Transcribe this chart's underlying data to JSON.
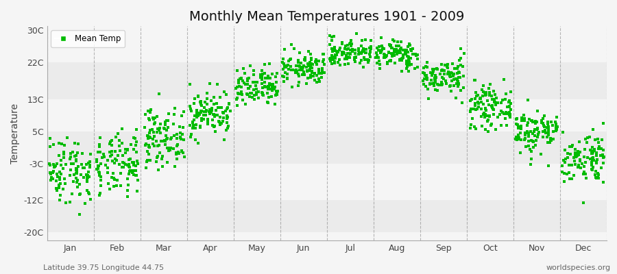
{
  "title": "Monthly Mean Temperatures 1901 - 2009",
  "ylabel": "Temperature",
  "yticks": [
    -20,
    -12,
    -3,
    5,
    13,
    22,
    30
  ],
  "ytick_labels": [
    "-20C",
    "-12C",
    "-3C",
    "5C",
    "13C",
    "22C",
    "30C"
  ],
  "ylim": [
    -22,
    31
  ],
  "months": [
    "Jan",
    "Feb",
    "Mar",
    "Apr",
    "May",
    "Jun",
    "Jul",
    "Aug",
    "Sep",
    "Oct",
    "Nov",
    "Dec"
  ],
  "month_means": [
    -4.5,
    -3.5,
    3.5,
    9.5,
    15.5,
    20.5,
    24.5,
    24.0,
    18.5,
    11.0,
    5.0,
    -1.5
  ],
  "month_stds": [
    4.2,
    3.8,
    3.5,
    2.8,
    2.5,
    2.0,
    1.8,
    1.8,
    2.2,
    2.5,
    2.8,
    3.2
  ],
  "n_years": 109,
  "dot_color": "#00bb00",
  "dot_size": 6,
  "bg_color": "#f5f5f5",
  "band_light": "#f5f5f5",
  "band_dark": "#ebebeb",
  "vline_color": "#999999",
  "footer_left": "Latitude 39.75 Longitude 44.75",
  "footer_right": "worldspecies.org",
  "legend_label": "Mean Temp",
  "title_fontsize": 14,
  "axis_fontsize": 9,
  "footer_fontsize": 8
}
